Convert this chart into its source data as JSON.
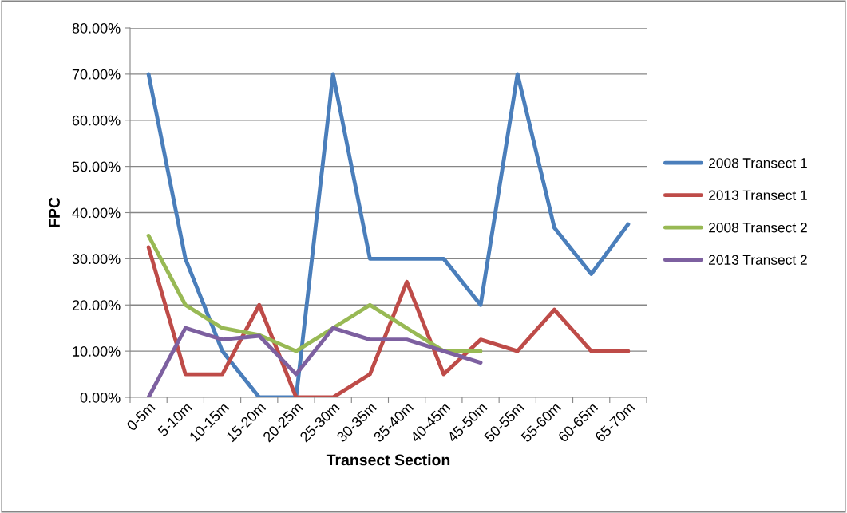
{
  "chart_data": {
    "type": "line",
    "xlabel": "Transect Section",
    "ylabel": "FPC",
    "categories": [
      "0-5m",
      "5-10m",
      "10-15m",
      "15-20m",
      "20-25m",
      "25-30m",
      "30-35m",
      "35-40m",
      "40-45m",
      "45-50m",
      "50-55m",
      "55-60m",
      "60-65m",
      "65-70m"
    ],
    "series": [
      {
        "name": "2008 Transect 1",
        "color": "#4a7ebb",
        "values": [
          70,
          30,
          10,
          0,
          0,
          70,
          30,
          30,
          30,
          20,
          70,
          36.7,
          26.7,
          37.5
        ]
      },
      {
        "name": "2013 Transect 1",
        "color": "#be4b48",
        "values": [
          32.5,
          5,
          5,
          20,
          0,
          0,
          5,
          25,
          5,
          12.5,
          10,
          19,
          10,
          10
        ]
      },
      {
        "name": "2008 Transect 2",
        "color": "#98b954",
        "values": [
          35,
          20,
          15,
          13.5,
          10,
          15,
          20,
          15,
          10,
          10,
          null,
          null,
          null,
          null
        ]
      },
      {
        "name": "2013 Transect 2",
        "color": "#7d60a0",
        "values": [
          0,
          15,
          12.5,
          13.3,
          5,
          15,
          12.5,
          12.5,
          10,
          7.5,
          null,
          null,
          null,
          null
        ]
      }
    ],
    "ylim": [
      0,
      80
    ],
    "yticks": [
      {
        "value": 0,
        "label": "0.00%"
      },
      {
        "value": 10,
        "label": "10.00%"
      },
      {
        "value": 20,
        "label": "20.00%"
      },
      {
        "value": 30,
        "label": "30.00%"
      },
      {
        "value": 40,
        "label": "40.00%"
      },
      {
        "value": 50,
        "label": "50.00%"
      },
      {
        "value": 60,
        "label": "60.00%"
      },
      {
        "value": 70,
        "label": "70.00%"
      },
      {
        "value": 80,
        "label": "80.00%"
      }
    ],
    "grid": "y",
    "legend": "right",
    "marker": "none",
    "line_style": "solid"
  }
}
